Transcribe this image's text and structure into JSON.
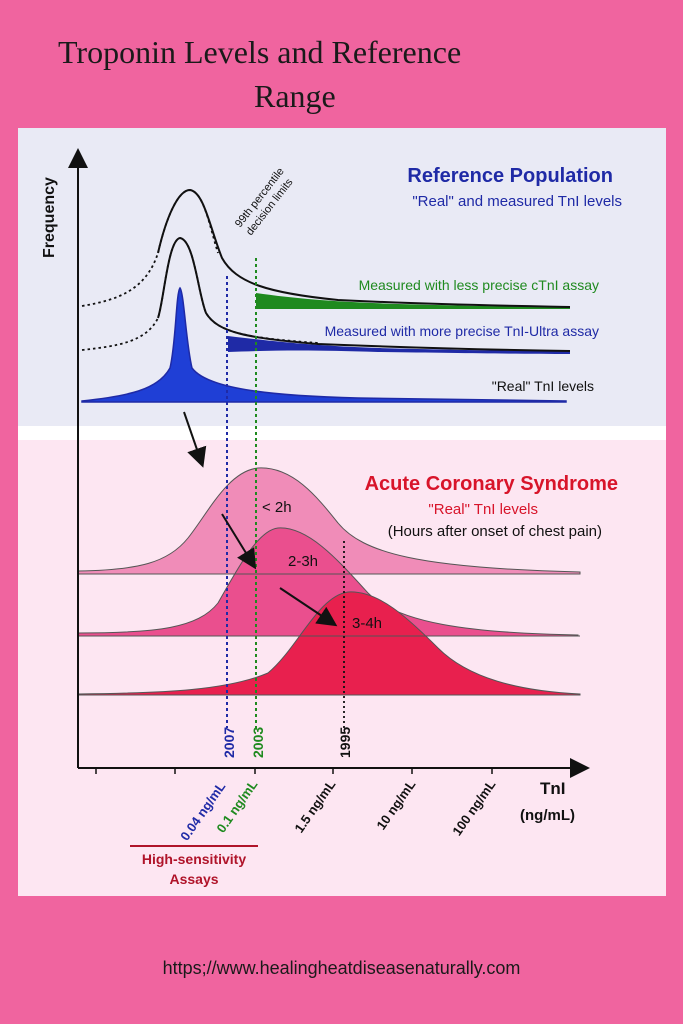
{
  "title": {
    "line1": "Troponin Levels and Reference",
    "line2": "Range"
  },
  "y_axis_label": "Frequency",
  "x_axis": {
    "label": "TnI",
    "unit": "(ng/mL)",
    "ticks": [
      "0.04 ng/mL",
      "0.1 ng/mL",
      "1.5 ng/mL",
      "10 ng/mL",
      "100 ng/mL"
    ],
    "tick_colors": [
      "#1f2aa6",
      "#1f8a1f",
      "#111111",
      "#111111",
      "#111111"
    ]
  },
  "reference": {
    "title": "Reference Population",
    "subtitle": "\"Real\" and measured TnI levels",
    "percentile_label_1": "99th percentile",
    "percentile_label_2": "decision limits",
    "curves": [
      {
        "label": "Measured with less precise cTnI assay",
        "color": "#1f8a1f"
      },
      {
        "label": "Measured with more precise TnI-Ultra assay",
        "color": "#1f2aa6"
      },
      {
        "label": "\"Real\" TnI levels",
        "color": "#111111"
      }
    ],
    "fill_color": "#1f3fd6"
  },
  "acs": {
    "title": "Acute Coronary Syndrome",
    "subtitle": "\"Real\" TnI levels",
    "note": "(Hours after onset of chest pain)",
    "curves": [
      {
        "label": "< 2h",
        "color": "#f08cb8"
      },
      {
        "label": "2-3h",
        "color": "#ea4f8e"
      },
      {
        "label": "3-4h",
        "color": "#e8204e"
      }
    ]
  },
  "year_lines": [
    {
      "year": "2007",
      "color": "#1f2aa6"
    },
    {
      "year": "2003",
      "color": "#1f8a1f"
    },
    {
      "year": "1995",
      "color": "#111111"
    }
  ],
  "high_sensitivity": {
    "line1": "High-sensitivity",
    "line2": "Assays",
    "color": "#b0142a"
  },
  "footer": "https;//www.healingheatdiseasenaturally.com"
}
